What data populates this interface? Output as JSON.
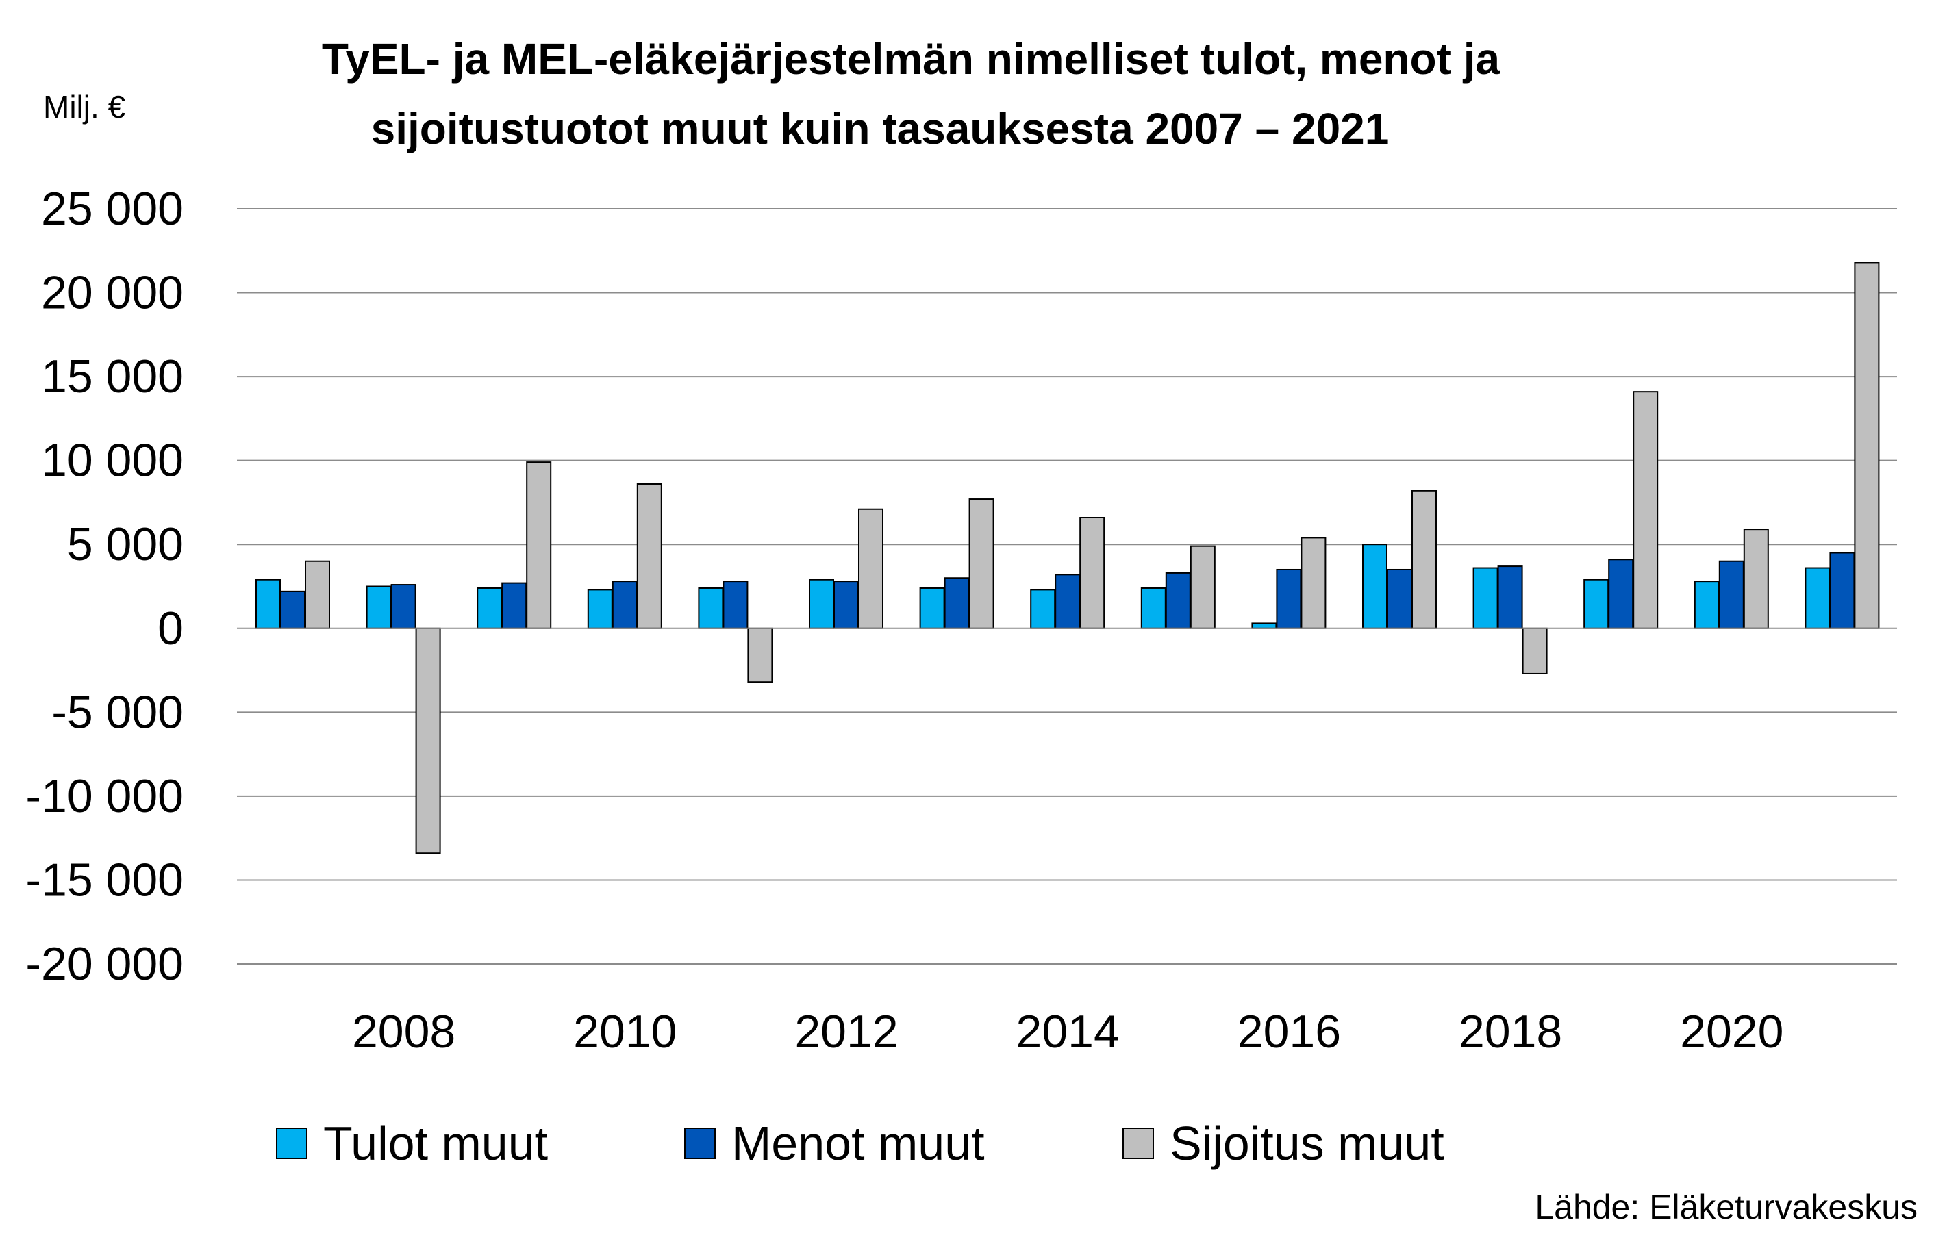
{
  "chart_data": {
    "type": "bar",
    "title_lines": [
      "TyEL- ja MEL-eläkejärjestelmän nimelliset tulot, menot ja",
      "sijoitustuotot muut kuin tasauksesta 2007 – 2021"
    ],
    "ylabel": "Milj. €",
    "ylim": [
      -20000,
      25000
    ],
    "y_ticks": [
      25000,
      20000,
      15000,
      10000,
      5000,
      0,
      -5000,
      -10000,
      -15000,
      -20000
    ],
    "y_tick_labels": [
      "25 000",
      "20 000",
      "15 000",
      "10 000",
      "5 000",
      "0",
      "-5 000",
      "-10 000",
      "-15 000",
      "-20 000"
    ],
    "categories": [
      2007,
      2008,
      2009,
      2010,
      2011,
      2012,
      2013,
      2014,
      2015,
      2016,
      2017,
      2018,
      2019,
      2020,
      2021
    ],
    "x_tick_labels": [
      "2008",
      "2010",
      "2012",
      "2014",
      "2016",
      "2018",
      "2020"
    ],
    "x_tick_categories": [
      2008,
      2010,
      2012,
      2014,
      2016,
      2018,
      2020
    ],
    "grid": true,
    "legend_position": "bottom",
    "series": [
      {
        "name": "Tulot muut",
        "color": "#00B0F0",
        "values": [
          2900,
          2500,
          2400,
          2300,
          2400,
          2900,
          2400,
          2300,
          2400,
          300,
          5000,
          3600,
          2900,
          2800,
          3600
        ]
      },
      {
        "name": "Menot muut",
        "color": "#0055B8",
        "values": [
          2200,
          2600,
          2700,
          2800,
          2800,
          2800,
          3000,
          3200,
          3300,
          3500,
          3500,
          3700,
          4100,
          4000,
          4500
        ]
      },
      {
        "name": "Sijoitus muut",
        "color": "#BFBFBF",
        "values": [
          4000,
          -13400,
          9900,
          8600,
          -3200,
          7100,
          7700,
          6600,
          4900,
          5400,
          8200,
          -2700,
          14100,
          5900,
          21800
        ]
      }
    ]
  },
  "source": "Lähde: Eläketurvakeskus"
}
